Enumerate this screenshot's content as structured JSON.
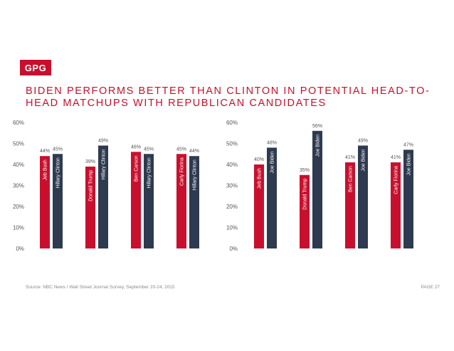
{
  "logo": "GPG",
  "title": "BIDEN PERFORMS BETTER THAN CLINTON IN POTENTIAL HEAD-TO-HEAD MATCHUPS WITH REPUBLICAN CANDIDATES",
  "source": "Source: NBC News / Wall Street Journal Survey, September 20-24, 2015",
  "page_label": "PAGE 27",
  "colors": {
    "accent": "#c8102e",
    "republican": "#c8102e",
    "democrat": "#2e3a4f"
  },
  "chart_data": [
    {
      "type": "bar",
      "yticks": [
        "0%",
        "10%",
        "20%",
        "30%",
        "40%",
        "50%",
        "60%"
      ],
      "ylim": [
        0,
        60
      ],
      "groups": [
        {
          "bars": [
            {
              "label": "Jeb Bush",
              "value": 44,
              "value_label": "44%",
              "party": "R"
            },
            {
              "label": "Hillary Clinton",
              "value": 45,
              "value_label": "45%",
              "party": "D"
            }
          ]
        },
        {
          "bars": [
            {
              "label": "Donald Trump",
              "value": 39,
              "value_label": "39%",
              "party": "R"
            },
            {
              "label": "Hillary Clinton",
              "value": 49,
              "value_label": "49%",
              "party": "D"
            }
          ]
        },
        {
          "bars": [
            {
              "label": "Ben Carson",
              "value": 46,
              "value_label": "46%",
              "party": "R"
            },
            {
              "label": "Hillary Clinton",
              "value": 45,
              "value_label": "45%",
              "party": "D"
            }
          ]
        },
        {
          "bars": [
            {
              "label": "Carly Fiorina",
              "value": 45,
              "value_label": "45%",
              "party": "R"
            },
            {
              "label": "Hillary Clinton",
              "value": 44,
              "value_label": "44%",
              "party": "D"
            }
          ]
        }
      ]
    },
    {
      "type": "bar",
      "yticks": [
        "0%",
        "10%",
        "20%",
        "30%",
        "40%",
        "50%",
        "60%"
      ],
      "ylim": [
        0,
        60
      ],
      "groups": [
        {
          "bars": [
            {
              "label": "Jeb Bush",
              "value": 40,
              "value_label": "40%",
              "party": "R"
            },
            {
              "label": "Joe Biden",
              "value": 48,
              "value_label": "48%",
              "party": "D"
            }
          ]
        },
        {
          "bars": [
            {
              "label": "Donald Trump",
              "value": 35,
              "value_label": "35%",
              "party": "R"
            },
            {
              "label": "Joe Biden",
              "value": 56,
              "value_label": "56%",
              "party": "D"
            }
          ]
        },
        {
          "bars": [
            {
              "label": "Ben Carson",
              "value": 41,
              "value_label": "41%",
              "party": "R"
            },
            {
              "label": "Joe Biden",
              "value": 49,
              "value_label": "49%",
              "party": "D"
            }
          ]
        },
        {
          "bars": [
            {
              "label": "Carly Fiorina",
              "value": 41,
              "value_label": "41%",
              "party": "R"
            },
            {
              "label": "Joe Biden",
              "value": 47,
              "value_label": "47%",
              "party": "D"
            }
          ]
        }
      ]
    }
  ]
}
